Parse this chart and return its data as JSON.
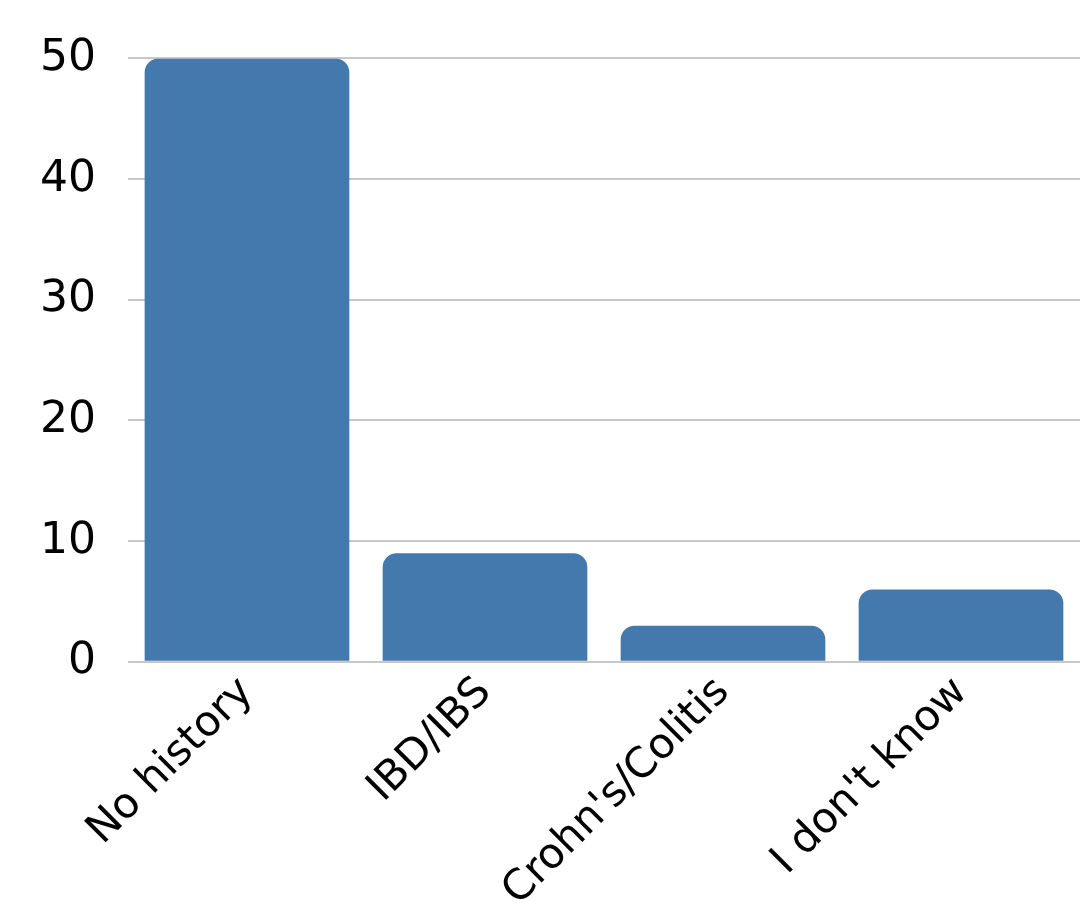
{
  "chart_data": {
    "type": "bar",
    "categories": [
      "No history",
      "IBD/IBS",
      "Crohn's/Colitis",
      "I don't know"
    ],
    "values": [
      50,
      9,
      3,
      6
    ],
    "color": "#4479ae",
    "ylim": [
      0,
      50
    ],
    "yticks": [
      0,
      10,
      20,
      30,
      40,
      50
    ],
    "grid": "y",
    "legend": false
  }
}
